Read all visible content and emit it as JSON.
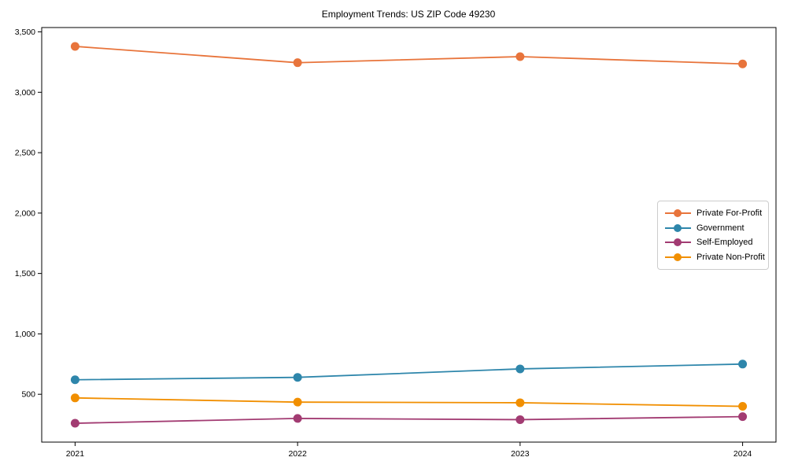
{
  "title": "Employment Trends: US ZIP Code 49230",
  "chart_data": {
    "type": "line",
    "title": "Employment Trends: US ZIP Code 49230",
    "xlabel": "",
    "ylabel": "",
    "x": [
      2021,
      2022,
      2023,
      2024
    ],
    "x_tick_labels": [
      "2021",
      "2022",
      "2023",
      "2024"
    ],
    "y_ticks": [
      500,
      1000,
      1500,
      2000,
      2500,
      3000,
      3500
    ],
    "y_tick_labels": [
      "500",
      "1,000",
      "1,500",
      "2,000",
      "2,500",
      "3,000",
      "3,500"
    ],
    "xlim": [
      2020.85,
      2024.15
    ],
    "ylim": [
      104,
      3536
    ],
    "grid": false,
    "legend_position": "center-right",
    "series": [
      {
        "name": "Private For-Profit",
        "color": "#E8743B",
        "values": [
          3380,
          3245,
          3295,
          3235
        ]
      },
      {
        "name": "Government",
        "color": "#2E86AB",
        "values": [
          620,
          640,
          710,
          750
        ]
      },
      {
        "name": "Self-Employed",
        "color": "#A23B72",
        "values": [
          260,
          300,
          290,
          315
        ]
      },
      {
        "name": "Private Non-Profit",
        "color": "#F18F01",
        "values": [
          470,
          435,
          430,
          400
        ]
      }
    ]
  }
}
